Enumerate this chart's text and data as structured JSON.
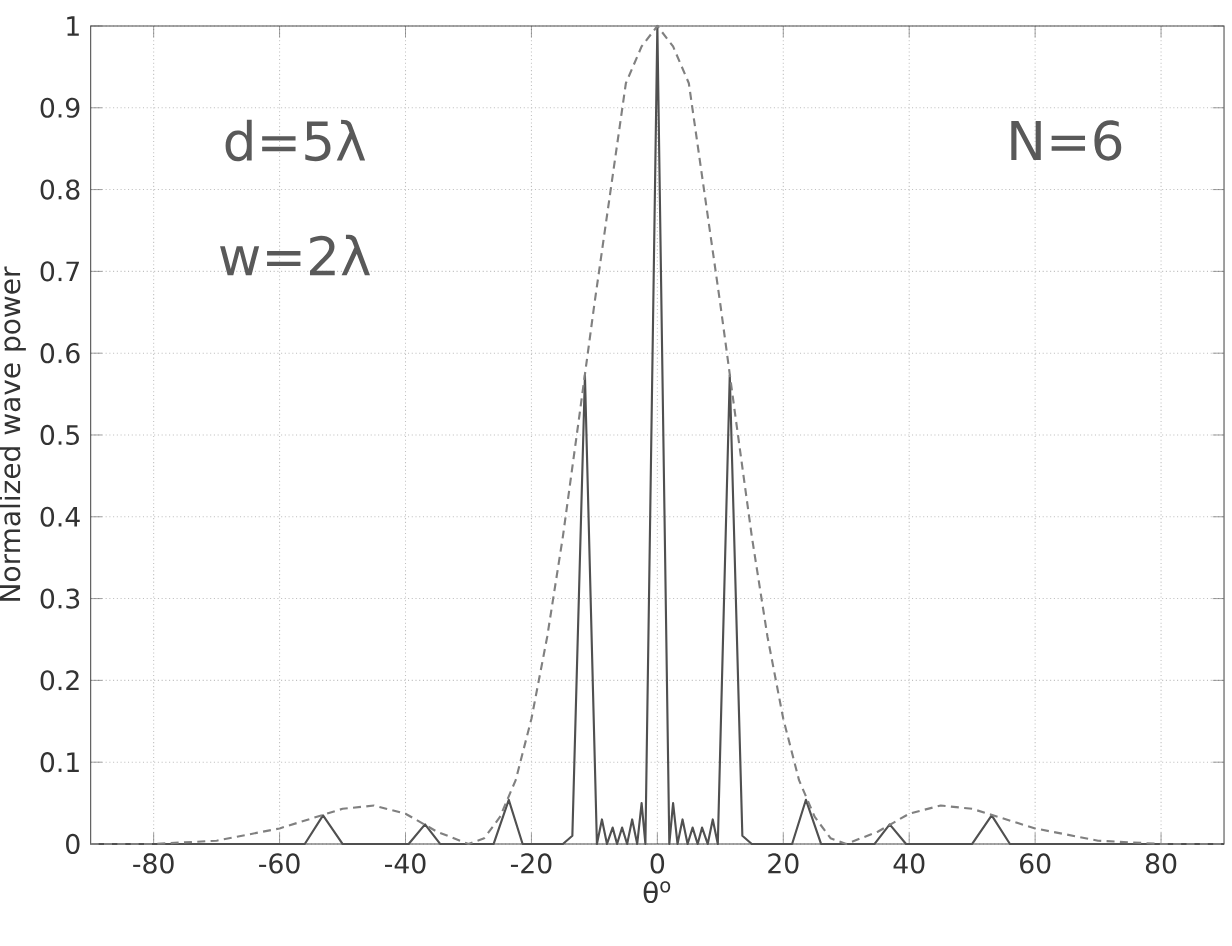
{
  "chart_data": {
    "type": "line",
    "xlabel": "θ$^{o}$",
    "ylabel": "Normalized wave power",
    "annotations": [
      "d=5λ",
      "w=2λ",
      "N=6"
    ],
    "xlim": [
      -90,
      90
    ],
    "ylim": [
      0,
      1
    ],
    "xticks": [
      -80,
      -60,
      -40,
      -20,
      0,
      20,
      40,
      60,
      80
    ],
    "yticks": [
      0,
      0.1,
      0.2,
      0.3,
      0.4,
      0.5,
      0.6,
      0.7,
      0.8,
      0.9,
      1
    ],
    "grid": true,
    "series": [
      {
        "color": "#505050",
        "line_style": "solid",
        "x": [
          -90,
          -56,
          -53.1,
          -50,
          -39.5,
          -36.9,
          -34.5,
          -26,
          -23.6,
          -21.4,
          -15,
          -13.5,
          -11.5,
          -9.6,
          -8.8,
          -8,
          -7.1,
          -6.4,
          -5.6,
          -4.8,
          -4,
          -3.2,
          -2.5,
          -1.9,
          0,
          1.9,
          2.5,
          3.2,
          4,
          4.8,
          5.6,
          6.4,
          7.1,
          8,
          8.8,
          9.6,
          11.5,
          13.5,
          15,
          21.4,
          23.6,
          26,
          34.5,
          36.9,
          39.5,
          50,
          53.1,
          56,
          90
        ],
        "values": [
          0,
          0,
          0.035,
          0,
          0,
          0.024,
          0,
          0,
          0.054,
          0,
          0,
          0.01,
          0.573,
          0,
          0.03,
          0,
          0.02,
          0,
          0.02,
          0,
          0.03,
          0,
          0.05,
          0,
          1,
          0,
          0.05,
          0,
          0.03,
          0,
          0.02,
          0,
          0.02,
          0,
          0.03,
          0,
          0.573,
          0.01,
          0,
          0,
          0.054,
          0,
          0,
          0.024,
          0,
          0,
          0.035,
          0,
          0
        ]
      },
      {
        "color": "#808080",
        "line_style": "dashed",
        "x": [
          -90,
          -80,
          -70,
          -60,
          -55,
          -50,
          -45,
          -40,
          -35,
          -30,
          -27.5,
          -25,
          -22.5,
          -20,
          -17.5,
          -15,
          -12.5,
          -10,
          -7.5,
          -5,
          -2.5,
          0,
          2.5,
          5,
          7.5,
          10,
          12.5,
          15,
          17.5,
          20,
          22.5,
          25,
          27.5,
          30,
          35,
          40,
          45,
          50,
          55,
          60,
          70,
          80,
          90
        ],
        "values": [
          0,
          0,
          0.004,
          0.019,
          0.031,
          0.043,
          0.047,
          0.037,
          0.015,
          0,
          0.007,
          0.033,
          0.078,
          0.153,
          0.253,
          0.376,
          0.517,
          0.66,
          0.795,
          0.93,
          0.975,
          1,
          0.975,
          0.93,
          0.795,
          0.66,
          0.517,
          0.376,
          0.253,
          0.153,
          0.078,
          0.033,
          0.007,
          0,
          0.015,
          0.037,
          0.047,
          0.043,
          0.031,
          0.019,
          0.004,
          0,
          0
        ]
      }
    ]
  }
}
